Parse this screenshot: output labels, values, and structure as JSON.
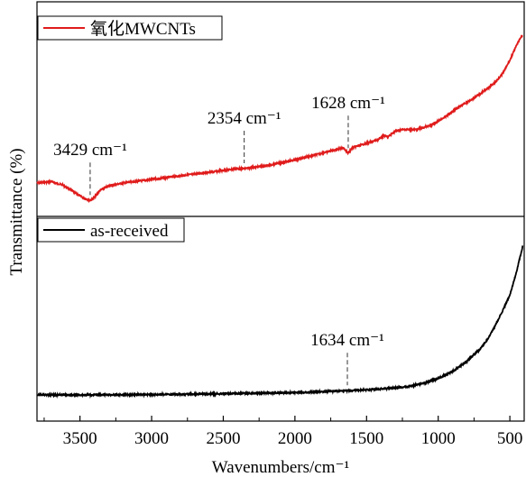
{
  "chart_data": {
    "type": "line",
    "xlabel": "Wavenumbers/cm⁻¹",
    "ylabel": "Transmittance (%)",
    "xlim": [
      3800,
      400
    ],
    "xticks": [
      "3500",
      "3000",
      "2500",
      "2000",
      "1500",
      "1000",
      "500"
    ],
    "xtick_values": [
      3500,
      3000,
      2500,
      2000,
      1500,
      1000,
      500
    ],
    "series": [
      {
        "name": "氧化MWCNTs",
        "color": "#e01b1b",
        "points": [
          [
            3800,
            0.0
          ],
          [
            3700,
            0.02
          ],
          [
            3620,
            -0.03
          ],
          [
            3560,
            -0.1
          ],
          [
            3500,
            -0.18
          ],
          [
            3460,
            -0.22
          ],
          [
            3429,
            -0.24
          ],
          [
            3400,
            -0.2
          ],
          [
            3360,
            -0.1
          ],
          [
            3300,
            -0.04
          ],
          [
            3200,
            0.0
          ],
          [
            3000,
            0.05
          ],
          [
            2800,
            0.1
          ],
          [
            2600,
            0.15
          ],
          [
            2400,
            0.2
          ],
          [
            2354,
            0.2
          ],
          [
            2200,
            0.24
          ],
          [
            2000,
            0.32
          ],
          [
            1800,
            0.42
          ],
          [
            1700,
            0.47
          ],
          [
            1660,
            0.49
          ],
          [
            1628,
            0.41
          ],
          [
            1600,
            0.49
          ],
          [
            1500,
            0.55
          ],
          [
            1420,
            0.6
          ],
          [
            1380,
            0.66
          ],
          [
            1350,
            0.64
          ],
          [
            1300,
            0.72
          ],
          [
            1250,
            0.74
          ],
          [
            1150,
            0.74
          ],
          [
            1050,
            0.8
          ],
          [
            950,
            0.92
          ],
          [
            850,
            1.06
          ],
          [
            750,
            1.18
          ],
          [
            650,
            1.32
          ],
          [
            600,
            1.4
          ],
          [
            550,
            1.52
          ],
          [
            500,
            1.7
          ],
          [
            460,
            1.88
          ],
          [
            430,
            2.0
          ],
          [
            410,
            2.05
          ]
        ],
        "annotations": [
          {
            "x": 3429,
            "label": "3429 cm⁻¹"
          },
          {
            "x": 2354,
            "label": "2354 cm⁻¹"
          },
          {
            "x": 1628,
            "label": "1628 cm⁻¹"
          }
        ]
      },
      {
        "name": "as-received",
        "color": "#000000",
        "points": [
          [
            3800,
            0.0
          ],
          [
            3500,
            0.0
          ],
          [
            3000,
            0.01
          ],
          [
            2500,
            0.03
          ],
          [
            2000,
            0.06
          ],
          [
            1700,
            0.1
          ],
          [
            1634,
            0.11
          ],
          [
            1500,
            0.13
          ],
          [
            1300,
            0.18
          ],
          [
            1200,
            0.22
          ],
          [
            1100,
            0.3
          ],
          [
            1000,
            0.42
          ],
          [
            900,
            0.6
          ],
          [
            800,
            0.86
          ],
          [
            700,
            1.2
          ],
          [
            650,
            1.45
          ],
          [
            600,
            1.78
          ],
          [
            550,
            2.15
          ],
          [
            500,
            2.55
          ],
          [
            460,
            3.05
          ],
          [
            430,
            3.5
          ],
          [
            410,
            3.8
          ]
        ],
        "annotations": [
          {
            "x": 1634,
            "label": "1634 cm⁻¹"
          }
        ]
      }
    ],
    "grid": false,
    "legend": "top-left of each panel"
  }
}
